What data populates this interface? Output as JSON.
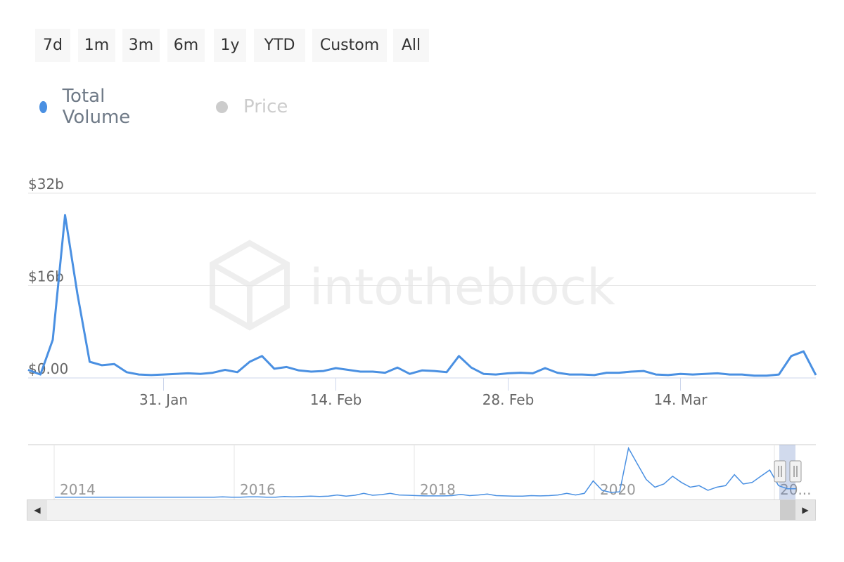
{
  "range_selector": {
    "buttons": [
      "7d",
      "1m",
      "3m",
      "6m",
      "1y",
      "YTD",
      "Custom",
      "All"
    ]
  },
  "legend": {
    "items": [
      {
        "label": "Total Volume",
        "color": "#4a90e2",
        "active": true
      },
      {
        "label": "Price",
        "color": "#cccccc",
        "active": false
      }
    ]
  },
  "watermark": "intotheblock",
  "chart_data": {
    "type": "line",
    "series": [
      {
        "name": "Total Volume",
        "color": "#4a90e2",
        "values": [
          1.4,
          0.6,
          6.6,
          28.2,
          14.6,
          2.8,
          2.2,
          2.4,
          1.0,
          0.6,
          0.5,
          0.6,
          0.7,
          0.8,
          0.7,
          0.9,
          1.4,
          1.0,
          2.8,
          3.8,
          1.6,
          1.9,
          1.3,
          1.1,
          1.2,
          1.7,
          1.4,
          1.1,
          1.1,
          0.9,
          1.8,
          0.7,
          1.3,
          1.2,
          1.0,
          3.8,
          1.8,
          0.7,
          0.6,
          0.8,
          0.9,
          0.8,
          1.7,
          0.9,
          0.6,
          0.6,
          0.5,
          0.9,
          0.9,
          1.1,
          1.2,
          0.6,
          0.5,
          0.7,
          0.6,
          0.7,
          0.8,
          0.6,
          0.6,
          0.4,
          0.4,
          0.6,
          3.8,
          4.6,
          0.5
        ]
      }
    ],
    "x_start": "2021-01-20",
    "x_step_days": 1,
    "x_ticks": [
      "31. Jan",
      "14. Feb",
      "28. Feb",
      "14. Mar"
    ],
    "y_ticks": [
      "$0.00",
      "$16b",
      "$32b"
    ],
    "ylim": [
      0,
      32
    ],
    "ylabel": "",
    "xlabel": "",
    "grid": true,
    "navigator": {
      "labels": [
        "2014",
        "2016",
        "2018",
        "2020",
        "20..."
      ],
      "values": [
        0.3,
        0.3,
        0.3,
        0.3,
        0.3,
        0.3,
        0.3,
        0.3,
        0.3,
        0.3,
        0.3,
        0.3,
        0.3,
        0.3,
        0.3,
        0.3,
        0.3,
        0.3,
        0.3,
        0.4,
        0.3,
        0.3,
        0.4,
        0.4,
        0.3,
        0.3,
        0.5,
        0.4,
        0.5,
        0.6,
        0.5,
        0.6,
        1.0,
        0.6,
        0.9,
        1.5,
        0.9,
        1.1,
        1.5,
        1.0,
        0.9,
        0.8,
        0.7,
        0.7,
        0.7,
        0.8,
        1.2,
        0.8,
        1.0,
        1.3,
        0.8,
        0.7,
        0.6,
        0.6,
        0.8,
        0.7,
        0.8,
        1.0,
        1.5,
        1.0,
        1.5,
        5.5,
        2.5,
        1.8,
        2.0,
        16.0,
        11.0,
        6.0,
        3.5,
        4.5,
        7.0,
        5.0,
        3.5,
        4.0,
        2.5,
        3.5,
        4.0,
        7.5,
        4.5,
        5.0,
        7.0,
        9.0,
        4.0,
        3.0,
        3.0
      ]
    }
  }
}
